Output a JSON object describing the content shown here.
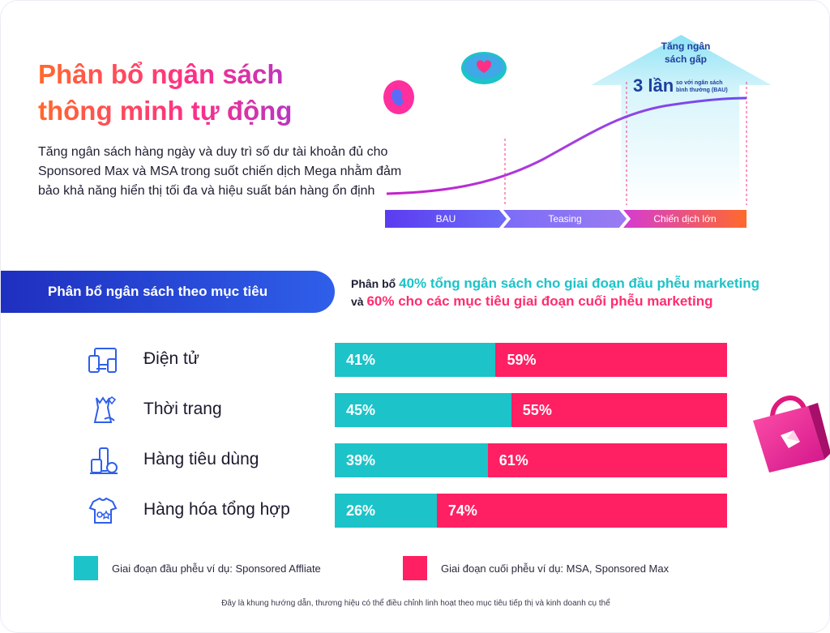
{
  "title": {
    "line1": "Phân bổ ngân sách",
    "line2": "thông minh tự động"
  },
  "intro": "Tăng ngân sách hàng ngày và duy trì số dư tài khoản đủ cho Sponsored Max và MSA trong suốt chiến dịch Mega nhằm đảm bảo khả năng hiển thị tối đa và hiệu suất bán hàng ổn định",
  "timeline": {
    "stages": [
      "BAU",
      "Teasing",
      "Chiến dịch lớn"
    ],
    "arrow_line1": "Tăng ngân",
    "arrow_line2": "sách gấp",
    "arrow_big": "3 lần",
    "arrow_small_1": "so với ngân sách",
    "arrow_small_2": "bình thường (BAU)"
  },
  "section_pill": "Phân bổ ngân sách theo mục tiêu",
  "allocation": {
    "prefix1": "Phân bổ ",
    "highlight1": "40% tổng ngân sách cho giai đoạn đầu phễu marketing",
    "prefix2": "và ",
    "highlight2": "60% cho các mục tiêu giai đoạn cuối phễu marketing"
  },
  "chart_data": {
    "type": "bar",
    "orientation": "horizontal",
    "stacked": true,
    "normalized_percent": true,
    "categories": [
      "Điện tử",
      "Thời trang",
      "Hàng tiêu dùng",
      "Hàng hóa tổng hợp"
    ],
    "series": [
      {
        "name": "Giai đoạn đầu phễu ví dụ: Sponsored Affliate",
        "color": "#1cc3c8",
        "values": [
          41,
          45,
          39,
          26
        ],
        "labels": [
          "41%",
          "45%",
          "39%",
          "26%"
        ]
      },
      {
        "name": "Giai đoạn cuối phễu ví dụ: MSA, Sponsored Max",
        "color": "#ff1f63",
        "values": [
          59,
          55,
          61,
          74
        ],
        "labels": [
          "59%",
          "55%",
          "61%",
          "74%"
        ]
      }
    ],
    "xlim": [
      0,
      100
    ],
    "legend_position": "bottom"
  },
  "icons": [
    "electronics-icon",
    "fashion-icon",
    "consumer-goods-icon",
    "general-goods-icon"
  ],
  "footnote": "Đây là khung hướng dẫn, thương hiệu có thể điều chỉnh linh hoạt theo mục tiêu tiếp thị và kinh doanh cụ thể"
}
